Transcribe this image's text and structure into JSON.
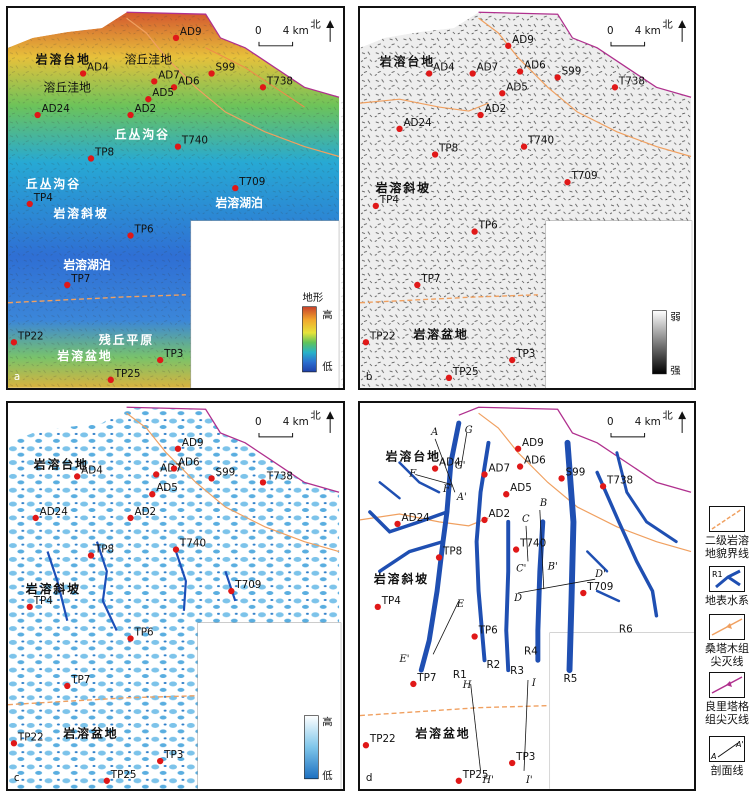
{
  "scale_label": "4 km",
  "scale_zero": "0",
  "north": "北",
  "panels": {
    "a": {
      "letter": "a",
      "legend_title": "地形",
      "legend_high": "高",
      "legend_low": "低"
    },
    "b": {
      "letter": "b",
      "legend_high": "弱",
      "legend_low": "强"
    },
    "c": {
      "letter": "c",
      "legend_high": "高",
      "legend_low": "低"
    },
    "d": {
      "letter": "d"
    }
  },
  "regions": {
    "karst_platform": "岩溶台地",
    "karst_slope": "岩溶斜坡",
    "karst_basin": "岩溶盆地",
    "peak_depression": "溶丘洼地",
    "hill_valley": "丘丛沟谷",
    "karst_lake": "岩溶湖泊",
    "residual_plain": "残丘平原"
  },
  "wells": [
    "AD9",
    "AD4",
    "AD7",
    "AD6",
    "S99",
    "T738",
    "AD5",
    "AD2",
    "AD24",
    "T740",
    "TP8",
    "T709",
    "TP4",
    "TP6",
    "TP7",
    "TP22",
    "TP3",
    "TP25"
  ],
  "profiles": [
    "A",
    "A'",
    "B",
    "B'",
    "C",
    "C'",
    "D",
    "D'",
    "E",
    "E'",
    "F",
    "F'",
    "G",
    "G'",
    "H",
    "H'",
    "I",
    "I'"
  ],
  "rivers": [
    "R1",
    "R2",
    "R3",
    "R4",
    "R5",
    "R6"
  ],
  "legend": {
    "boundary": "二级岩溶地貌界线",
    "drainage": "地表水系",
    "drainage_box_label": "R1",
    "sangtamu": "桑塔木组尖灭线",
    "lianglitage": "良里塔格组尖灭线",
    "profile": "剖面线",
    "profile_a": "A",
    "profile_a2": "A'"
  }
}
